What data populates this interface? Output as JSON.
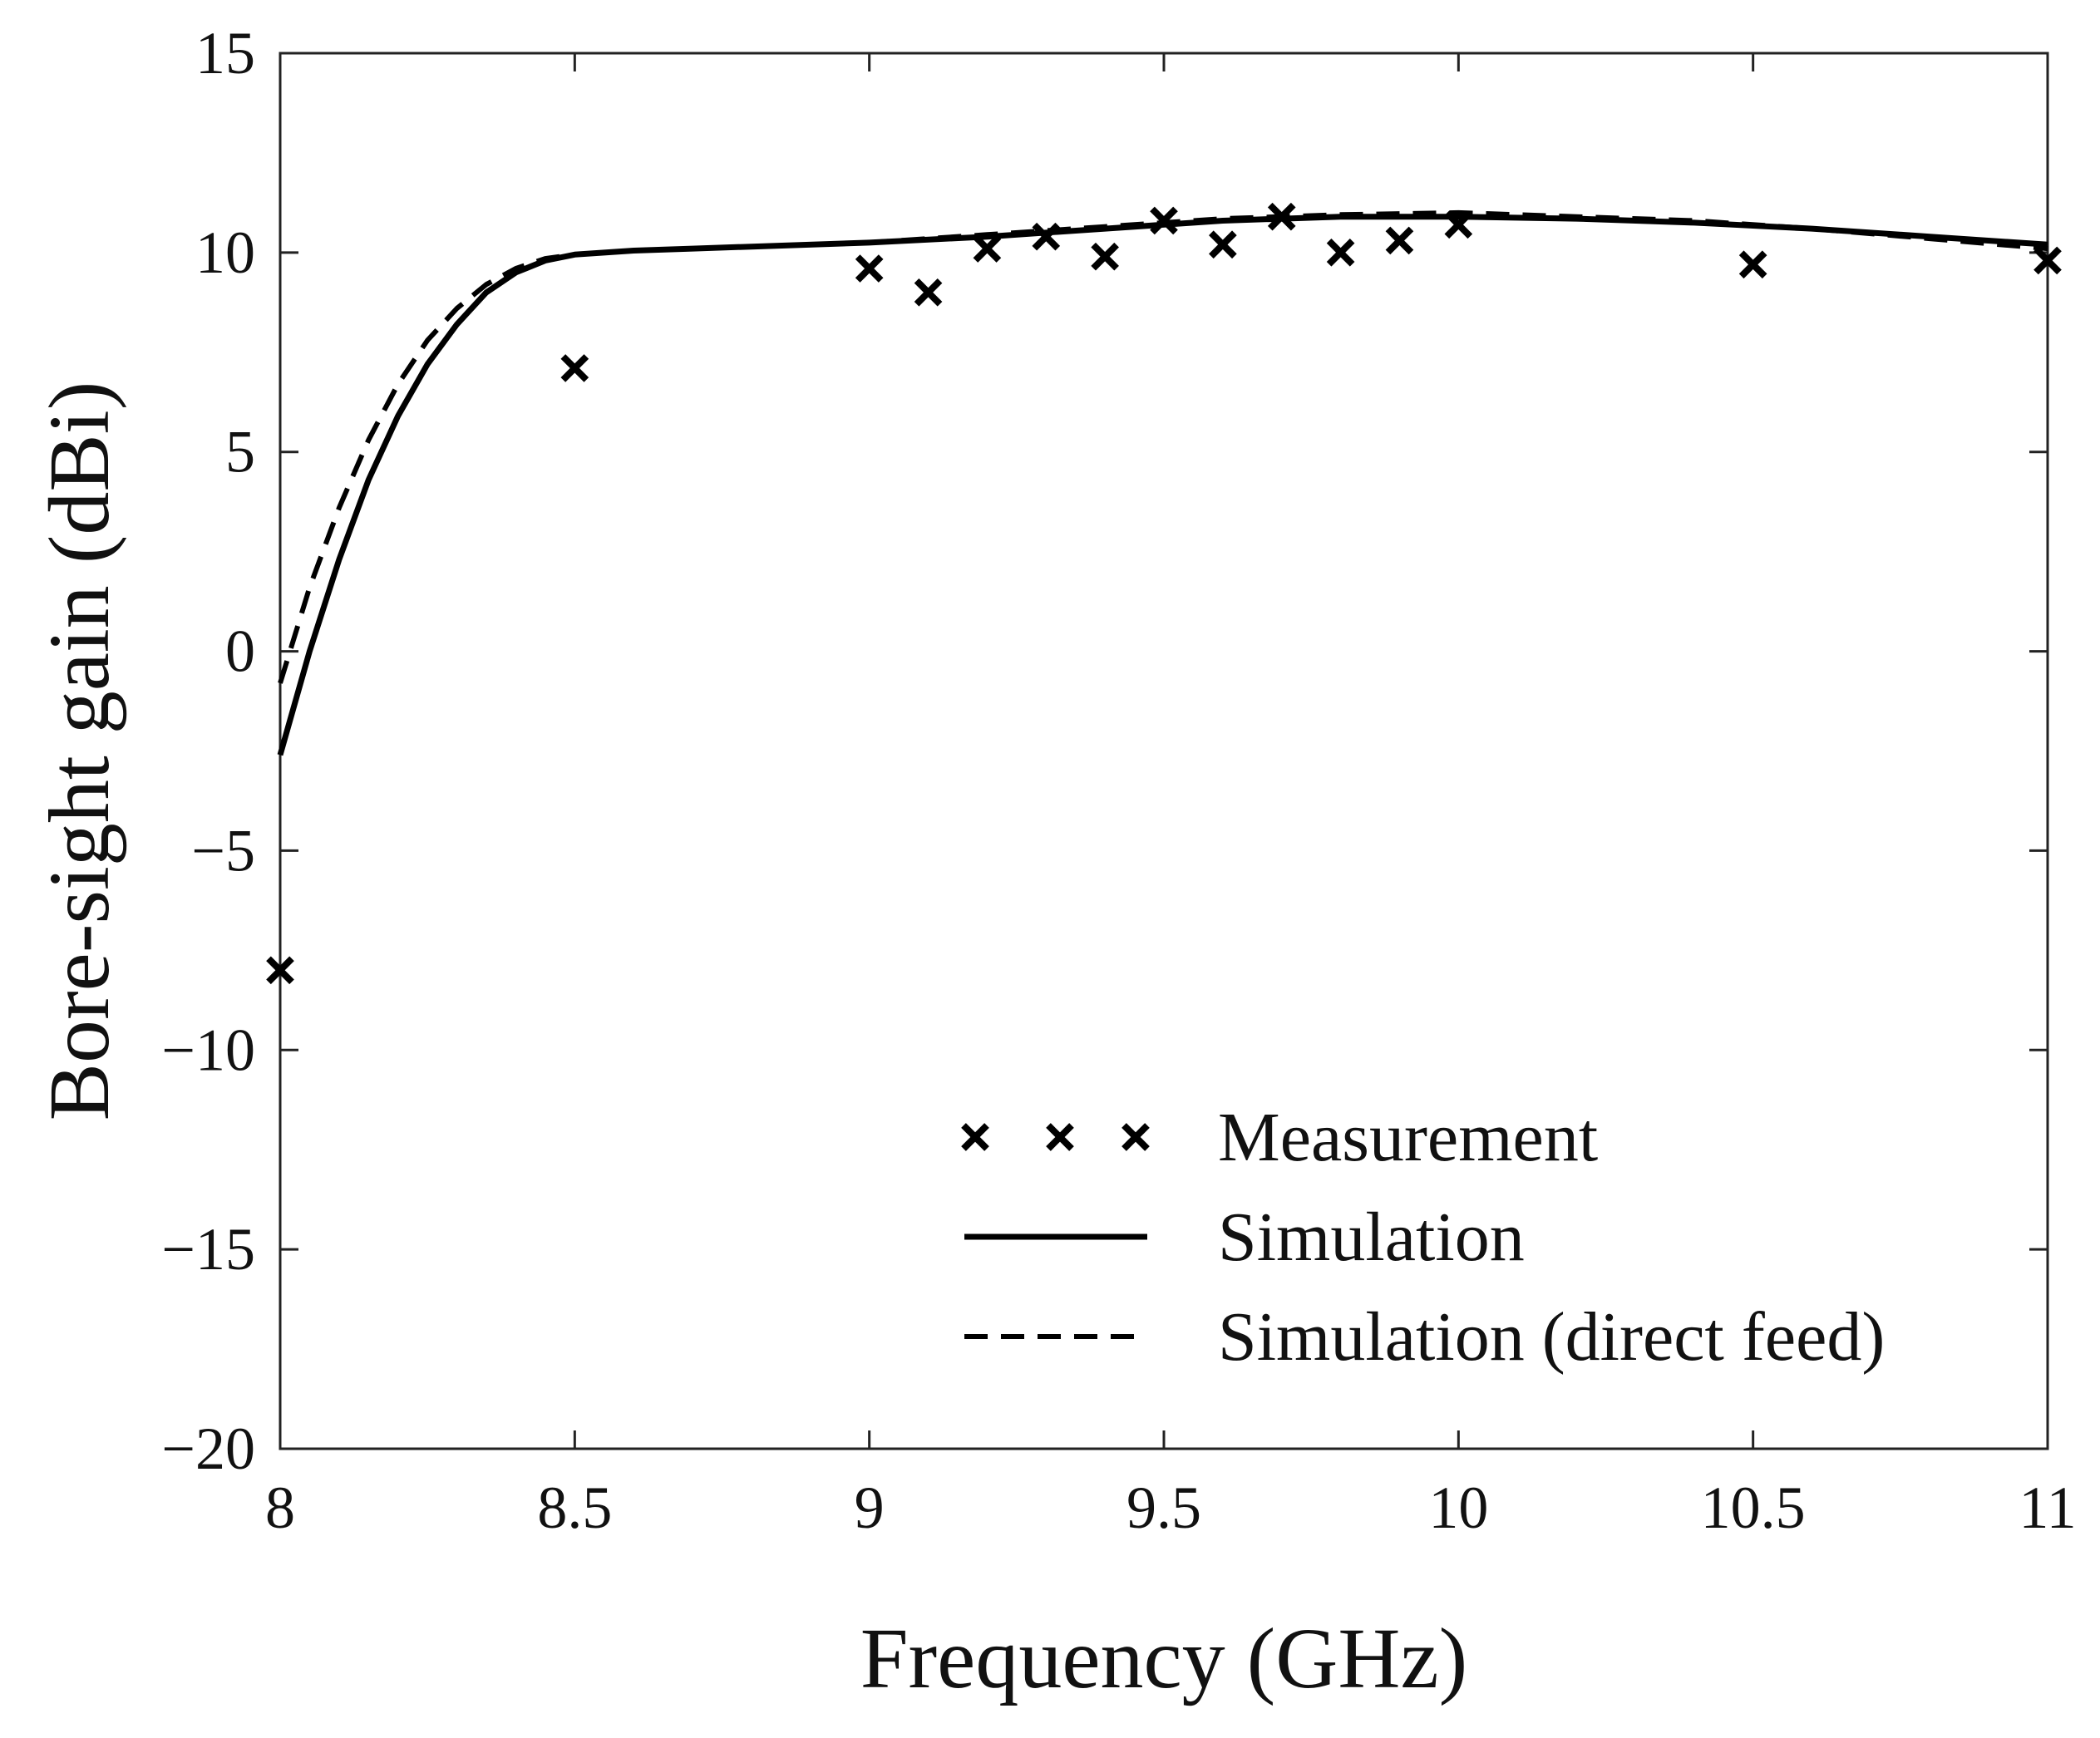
{
  "chart_data": {
    "type": "line",
    "xlabel": "Frequency (GHz)",
    "ylabel": "Bore-sight gain (dBi)",
    "xlim": [
      8,
      11
    ],
    "ylim": [
      -20,
      15
    ],
    "xticks": [
      8,
      8.5,
      9,
      9.5,
      10,
      10.5,
      11
    ],
    "xtick_labels": [
      "8",
      "8.5",
      "9",
      "9.5",
      "10",
      "10.5",
      "11"
    ],
    "yticks": [
      -20,
      -15,
      -10,
      -5,
      0,
      5,
      10,
      15
    ],
    "ytick_labels": [
      "−20",
      "−15",
      "−10",
      "−5",
      "0",
      "5",
      "10",
      "15"
    ],
    "grid": false,
    "legend_position": "bottom-right",
    "series": [
      {
        "name": "Measurement",
        "style": "markers-x",
        "color": "#000000",
        "x": [
          8.0,
          8.5,
          9.0,
          9.1,
          9.2,
          9.3,
          9.4,
          9.5,
          9.6,
          9.7,
          9.8,
          9.9,
          10.0,
          10.5,
          11.0
        ],
        "y": [
          -8.0,
          7.1,
          9.6,
          9.0,
          10.1,
          10.4,
          9.9,
          10.8,
          10.2,
          10.9,
          10.0,
          10.3,
          10.7,
          9.7,
          9.8
        ]
      },
      {
        "name": "Simulation",
        "style": "solid",
        "color": "#000000",
        "x": [
          8.0,
          8.05,
          8.1,
          8.15,
          8.2,
          8.25,
          8.3,
          8.35,
          8.4,
          8.45,
          8.5,
          8.55,
          8.6,
          8.7,
          8.8,
          9.0,
          9.2,
          9.4,
          9.6,
          9.8,
          10.0,
          10.2,
          10.4,
          10.6,
          10.8,
          11.0
        ],
        "y": [
          -2.6,
          0.0,
          2.3,
          4.3,
          5.9,
          7.2,
          8.2,
          9.0,
          9.5,
          9.8,
          9.95,
          10.0,
          10.05,
          10.1,
          10.15,
          10.25,
          10.4,
          10.6,
          10.8,
          10.9,
          10.9,
          10.85,
          10.75,
          10.6,
          10.4,
          10.2
        ]
      },
      {
        "name": "Simulation (direct feed)",
        "style": "dashed",
        "color": "#000000",
        "x": [
          8.0,
          8.05,
          8.1,
          8.15,
          8.2,
          8.25,
          8.3,
          8.35,
          8.4,
          8.45,
          8.5,
          8.55,
          8.6,
          8.7,
          8.8,
          9.0,
          9.2,
          9.4,
          9.6,
          9.8,
          10.0,
          10.2,
          10.4,
          10.6,
          10.8,
          11.0
        ],
        "y": [
          -0.8,
          1.6,
          3.6,
          5.3,
          6.7,
          7.8,
          8.6,
          9.2,
          9.6,
          9.85,
          9.95,
          10.0,
          10.05,
          10.1,
          10.15,
          10.25,
          10.45,
          10.65,
          10.85,
          10.95,
          11.0,
          10.9,
          10.8,
          10.6,
          10.35,
          10.1
        ]
      }
    ]
  }
}
